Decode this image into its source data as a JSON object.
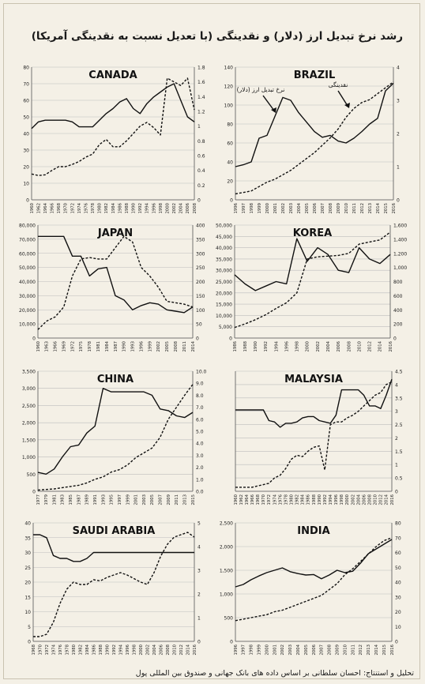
{
  "header": {
    "title": "رشد نرخ تبدیل ارز (دلار) و نقدینگی (با تعدیل نسبت به نقدینگی آمریکا)"
  },
  "footer": {
    "credit": "تحلیل و استنتاج: احسان سلطانی بر اساس داده های بانک جهانی و صندوق بین المللی پول"
  },
  "colors": {
    "line": "#111111",
    "grid": "#bdbdbd",
    "background": "#f4f0e6"
  },
  "chart_data": [
    {
      "type": "line",
      "title": "CANADA",
      "x": [
        "1960",
        "1962",
        "1964",
        "1966",
        "1968",
        "1970",
        "1972",
        "1974",
        "1976",
        "1978",
        "1980",
        "1982",
        "1984",
        "1986",
        "1988",
        "1990",
        "1992",
        "1994",
        "1996",
        "1998",
        "2000",
        "2002",
        "2004",
        "2006",
        "2008"
      ],
      "ylim": [
        0,
        80
      ],
      "yticks": [
        "0",
        "10",
        "20",
        "30",
        "40",
        "50",
        "60",
        "70",
        "80"
      ],
      "y2lim": [
        0,
        1.8
      ],
      "y2ticks": [
        "0",
        "0.2",
        "0.4",
        "0.6",
        "0.8",
        "1",
        "1.2",
        "1.4",
        "1.6",
        "1.8"
      ],
      "series": [
        {
          "axis": "left",
          "style": "solid",
          "values": [
            43,
            47,
            48,
            48,
            48,
            48,
            47,
            44,
            44,
            44,
            48,
            52,
            55,
            59,
            61,
            55,
            52,
            58,
            62,
            65,
            68,
            70,
            60,
            50,
            47
          ]
        },
        {
          "axis": "right",
          "style": "dashed",
          "values": [
            0.35,
            0.33,
            0.34,
            0.4,
            0.45,
            0.45,
            0.48,
            0.52,
            0.58,
            0.62,
            0.75,
            0.82,
            0.72,
            0.72,
            0.8,
            0.9,
            1.0,
            1.05,
            0.98,
            0.88,
            1.65,
            1.6,
            1.55,
            1.65,
            1.22
          ]
        }
      ]
    },
    {
      "type": "line",
      "title": "BRAZIL",
      "x": [
        "1996",
        "1997",
        "1998",
        "1999",
        "2000",
        "2001",
        "2002",
        "2003",
        "2004",
        "2005",
        "2006",
        "2007",
        "2008",
        "2009",
        "2010",
        "2011",
        "2012",
        "2013",
        "2014",
        "2015",
        "2016"
      ],
      "ylim": [
        0,
        140
      ],
      "yticks": [
        "0",
        "20",
        "40",
        "60",
        "80",
        "100",
        "120",
        "140"
      ],
      "y2lim": [
        0,
        4.5
      ],
      "y2ticks": [
        "0",
        "1",
        "2",
        "3",
        "4"
      ],
      "annotations": [
        "نرخ تبدیل ارز (دلار)",
        "نقدینگی"
      ],
      "series": [
        {
          "axis": "left",
          "style": "solid",
          "values": [
            35,
            37,
            40,
            65,
            68,
            88,
            108,
            105,
            92,
            82,
            72,
            66,
            68,
            62,
            60,
            65,
            72,
            80,
            86,
            115,
            123
          ]
        },
        {
          "axis": "right",
          "style": "dashed",
          "values": [
            0.2,
            0.25,
            0.3,
            0.45,
            0.6,
            0.7,
            0.85,
            1.0,
            1.2,
            1.4,
            1.6,
            1.85,
            2.1,
            2.4,
            2.8,
            3.1,
            3.3,
            3.4,
            3.6,
            3.8,
            4.0
          ]
        }
      ]
    },
    {
      "type": "line",
      "title": "JAPAN",
      "x": [
        "1960",
        "1963",
        "1966",
        "1969",
        "1972",
        "1975",
        "1978",
        "1981",
        "1984",
        "1987",
        "1990",
        "1993",
        "1996",
        "1999",
        "2002",
        "2005",
        "2008",
        "2011",
        "2014"
      ],
      "ylim": [
        0,
        80000
      ],
      "yticks": [
        "0",
        "10,000",
        "20,000",
        "30,000",
        "40,000",
        "50,000",
        "60,000",
        "70,000",
        "80,000"
      ],
      "y2lim": [
        0,
        400
      ],
      "y2ticks": [
        "0",
        "50",
        "100",
        "150",
        "200",
        "250",
        "300",
        "350",
        "400"
      ],
      "series": [
        {
          "axis": "left",
          "style": "solid",
          "values": [
            72000,
            72000,
            72000,
            72000,
            58000,
            58000,
            44000,
            49000,
            50000,
            30000,
            27000,
            20000,
            23000,
            25000,
            24000,
            20000,
            19000,
            18000,
            22000
          ]
        },
        {
          "axis": "right",
          "style": "dashed",
          "values": [
            30,
            60,
            75,
            110,
            220,
            280,
            285,
            280,
            280,
            320,
            360,
            340,
            250,
            220,
            180,
            130,
            125,
            120,
            110
          ]
        }
      ]
    },
    {
      "type": "line",
      "title": "KOREA",
      "x": [
        "1986",
        "1988",
        "1990",
        "1992",
        "1994",
        "1996",
        "1998",
        "2000",
        "2002",
        "2004",
        "2006",
        "2008",
        "2010",
        "2012",
        "2014",
        "2016"
      ],
      "ylim": [
        0,
        50000
      ],
      "yticks": [
        "0",
        "5,000",
        "10,000",
        "15,000",
        "20,000",
        "25,000",
        "30,000",
        "35,000",
        "40,000",
        "45,000",
        "50,000"
      ],
      "y2lim": [
        0,
        1600
      ],
      "y2ticks": [
        "0",
        "200",
        "400",
        "600",
        "800",
        "1,000",
        "1,200",
        "1,400",
        "1,600"
      ],
      "series": [
        {
          "axis": "left",
          "style": "solid",
          "values": [
            28000,
            24000,
            21000,
            23000,
            25000,
            24000,
            44000,
            34000,
            40000,
            37000,
            30000,
            29000,
            40000,
            35000,
            33000,
            37000
          ]
        },
        {
          "axis": "right",
          "style": "dashed",
          "values": [
            150,
            200,
            260,
            330,
            420,
            500,
            640,
            1120,
            1150,
            1160,
            1170,
            1200,
            1330,
            1360,
            1390,
            1500
          ]
        }
      ]
    },
    {
      "type": "line",
      "title": "CHINA",
      "x": [
        "1977",
        "1979",
        "1981",
        "1983",
        "1985",
        "1987",
        "1989",
        "1991",
        "1993",
        "1995",
        "1997",
        "1999",
        "2001",
        "2003",
        "2005",
        "2007",
        "2009",
        "2011",
        "2013",
        "2015"
      ],
      "ylim": [
        0,
        3500
      ],
      "yticks": [
        "0",
        "500",
        "1,000",
        "1,500",
        "2,000",
        "2,500",
        "3,000",
        "3,500"
      ],
      "y2lim": [
        0,
        10
      ],
      "y2ticks": [
        "0.0",
        "1.0",
        "2.0",
        "3.0",
        "4.0",
        "5.0",
        "6.0",
        "7.0",
        "8.0",
        "9.0",
        "10.0"
      ],
      "series": [
        {
          "axis": "left",
          "style": "solid",
          "values": [
            550,
            500,
            650,
            1000,
            1300,
            1350,
            1700,
            1900,
            3000,
            2900,
            2900,
            2900,
            2900,
            2900,
            2800,
            2400,
            2350,
            2200,
            2150,
            2300
          ]
        },
        {
          "axis": "right",
          "style": "dashed",
          "values": [
            0.1,
            0.15,
            0.2,
            0.3,
            0.4,
            0.5,
            0.7,
            1.0,
            1.2,
            1.6,
            1.8,
            2.2,
            2.8,
            3.2,
            3.6,
            4.5,
            6.0,
            7.0,
            8.0,
            8.9
          ]
        }
      ]
    },
    {
      "type": "line",
      "title": "MALAYSIA",
      "x": [
        "1960",
        "1962",
        "1964",
        "1966",
        "1968",
        "1970",
        "1972",
        "1974",
        "1976",
        "1978",
        "1980",
        "1982",
        "1984",
        "1986",
        "1988",
        "1990",
        "1992",
        "1994",
        "1996",
        "1998",
        "2000",
        "2002",
        "2004",
        "2006",
        "2008",
        "2010",
        "2012",
        "2014",
        "2016"
      ],
      "y2lim": [
        0,
        4.5
      ],
      "y2ticks": [
        "0",
        "0.5",
        "1",
        "1.5",
        "2",
        "2.5",
        "3",
        "3.5",
        "4",
        "4.5"
      ],
      "series": [
        {
          "axis": "right",
          "style": "solid",
          "values": [
            3.05,
            3.05,
            3.05,
            3.05,
            3.05,
            3.05,
            2.65,
            2.6,
            2.4,
            2.55,
            2.55,
            2.6,
            2.75,
            2.8,
            2.8,
            2.65,
            2.6,
            2.55,
            2.85,
            3.8,
            3.8,
            3.8,
            3.8,
            3.6,
            3.2,
            3.2,
            3.1,
            3.6,
            4.2
          ]
        },
        {
          "axis": "right",
          "style": "dashed",
          "values": [
            0.15,
            0.15,
            0.15,
            0.15,
            0.2,
            0.25,
            0.3,
            0.5,
            0.6,
            0.85,
            1.2,
            1.35,
            1.3,
            1.5,
            1.65,
            1.7,
            0.8,
            2.5,
            2.6,
            2.6,
            2.75,
            2.85,
            3.0,
            3.2,
            3.4,
            3.6,
            3.7,
            4.0,
            4.1
          ]
        }
      ]
    },
    {
      "type": "line",
      "title": "SAUDI ARABIA",
      "x": [
        "1968",
        "1970",
        "1972",
        "1974",
        "1976",
        "1978",
        "1980",
        "1982",
        "1984",
        "1986",
        "1988",
        "1990",
        "1992",
        "1994",
        "1996",
        "1998",
        "2000",
        "2002",
        "2004",
        "2006",
        "2008",
        "2010",
        "2012",
        "2014",
        "2016"
      ],
      "ylim": [
        0,
        40
      ],
      "yticks": [
        "0",
        "5",
        "10",
        "15",
        "20",
        "25",
        "30",
        "35",
        "40"
      ],
      "y2lim": [
        0,
        5
      ],
      "y2ticks": [
        "0",
        "1",
        "2",
        "3",
        "4",
        "5"
      ],
      "series": [
        {
          "axis": "left",
          "style": "solid",
          "values": [
            36,
            36,
            35,
            29,
            28,
            28,
            27,
            27,
            28,
            30,
            30,
            30,
            30,
            30,
            30,
            30,
            30,
            30,
            30,
            30,
            30,
            30,
            30,
            30,
            30
          ]
        },
        {
          "axis": "right",
          "style": "dashed",
          "values": [
            0.2,
            0.2,
            0.3,
            0.8,
            1.6,
            2.2,
            2.5,
            2.4,
            2.4,
            2.6,
            2.55,
            2.7,
            2.8,
            2.9,
            2.8,
            2.65,
            2.5,
            2.4,
            2.9,
            3.6,
            4.1,
            4.4,
            4.5,
            4.6,
            4.4
          ]
        }
      ]
    },
    {
      "type": "line",
      "title": "INDIA",
      "x": [
        "1996",
        "1997",
        "1998",
        "1999",
        "2000",
        "2001",
        "2002",
        "2003",
        "2004",
        "2005",
        "2006",
        "2007",
        "2008",
        "2009",
        "2010",
        "2011",
        "2012",
        "2013",
        "2014",
        "2015",
        "2016"
      ],
      "ylim": [
        0,
        2500
      ],
      "yticks": [
        "0",
        "500",
        "1,000",
        "1,500",
        "2,000",
        "2,500"
      ],
      "y2lim": [
        0,
        80
      ],
      "y2ticks": [
        "0",
        "10",
        "20",
        "30",
        "40",
        "50",
        "60",
        "70",
        "80"
      ],
      "series": [
        {
          "axis": "left",
          "style": "solid",
          "values": [
            1150,
            1200,
            1300,
            1380,
            1450,
            1500,
            1550,
            1470,
            1430,
            1400,
            1410,
            1320,
            1400,
            1500,
            1450,
            1480,
            1650,
            1850,
            1950,
            2050,
            2150
          ]
        },
        {
          "axis": "right",
          "style": "dashed",
          "values": [
            14,
            15,
            16,
            17,
            18,
            20,
            21,
            23,
            25,
            27,
            29,
            31,
            35,
            39,
            45,
            49,
            54,
            59,
            64,
            68,
            70
          ]
        }
      ]
    }
  ]
}
